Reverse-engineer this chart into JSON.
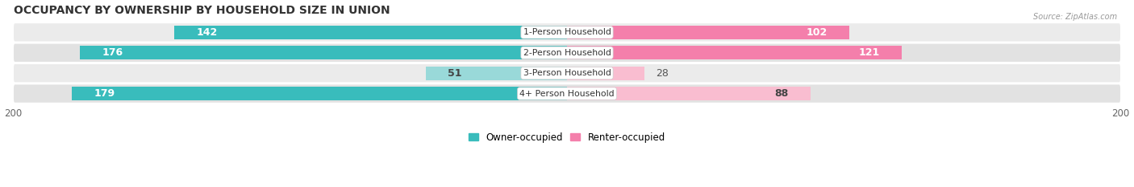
{
  "title": "OCCUPANCY BY OWNERSHIP BY HOUSEHOLD SIZE IN UNION",
  "source": "Source: ZipAtlas.com",
  "categories": [
    "1-Person Household",
    "2-Person Household",
    "3-Person Household",
    "4+ Person Household"
  ],
  "owner_values": [
    142,
    176,
    51,
    179
  ],
  "renter_values": [
    102,
    121,
    28,
    88
  ],
  "owner_color": "#39BCBC",
  "renter_color": "#F47FAB",
  "owner_light_color": "#99D9D9",
  "renter_light_color": "#F9BDD0",
  "row_bg_color": "#EEEEEE",
  "row_alt_bg_color": "#E4E4E4",
  "max_value": 200,
  "legend_owner": "Owner-occupied",
  "legend_renter": "Renter-occupied",
  "title_fontsize": 10,
  "label_fontsize": 9,
  "tick_fontsize": 8.5
}
